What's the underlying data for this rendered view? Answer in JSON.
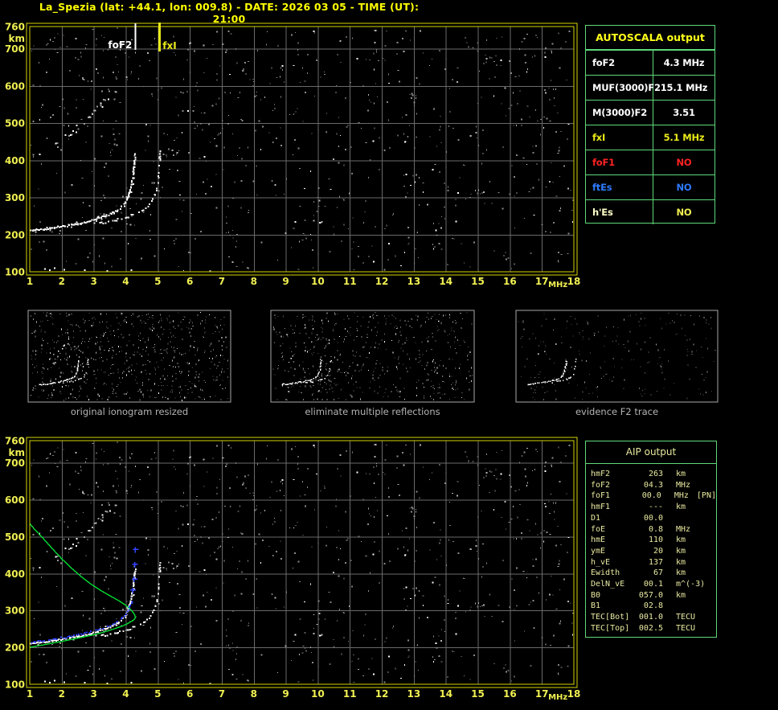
{
  "title": "La_Spezia (lat: +44.1, lon: 009.8) - DATE: 2026 03 05 - TIME (UT): 21:00",
  "colors": {
    "title": "#ffff00",
    "frame_yellow": "#d4d400",
    "grid_gray": "#6a6a6a",
    "tick_label": "#f0f052",
    "table_border": "#5ed97a",
    "trace_white": "#ffffff",
    "profile_green": "#00dd33",
    "restored_blue": "#3344ff",
    "caption_gray": "#b3b3b3",
    "aip_text": "#e9e9a0"
  },
  "autoscala": {
    "title": "AUTOSCALA output",
    "rows": [
      {
        "label": "foF2",
        "value": "4.3 MHz",
        "color": "#ffffff",
        "value_color": "#ffffff"
      },
      {
        "label": "MUF(3000)F2",
        "value": "15.1 MHz",
        "color": "#ffffff",
        "value_color": "#ffffff"
      },
      {
        "label": "M(3000)F2",
        "value": "3.51",
        "color": "#ffffff",
        "value_color": "#ffffff"
      },
      {
        "label": "fxI",
        "value": "5.1 MHz",
        "color": "#e8e81a",
        "value_color": "#e8e81a"
      },
      {
        "label": "foF1",
        "value": "NO",
        "color": "#ff2222",
        "value_color": "#ff2222"
      },
      {
        "label": "ftEs",
        "value": "NO",
        "color": "#2e7bff",
        "value_color": "#2e7bff"
      },
      {
        "label": "h'Es",
        "value": "NO",
        "color": "#ffffca",
        "value_color": "#f0f052"
      }
    ]
  },
  "aip": {
    "title": "AIP output",
    "rows": [
      {
        "label": "hmF2",
        "value": "263",
        "unit": "km"
      },
      {
        "label": "foF2",
        "value": "04.3",
        "unit": "MHz"
      },
      {
        "label": "foF1",
        "value": "00.0",
        "unit": "MHz",
        "extra": "[PN]"
      },
      {
        "label": "hmF1",
        "value": "---",
        "unit": "km"
      },
      {
        "label": "D1",
        "value": "00.0",
        "unit": ""
      },
      {
        "label": "foE",
        "value": "0.8",
        "unit": "MHz"
      },
      {
        "label": "hmE",
        "value": "110",
        "unit": "km"
      },
      {
        "label": "ymE",
        "value": "20",
        "unit": "km"
      },
      {
        "label": "h_vE",
        "value": "137",
        "unit": "km"
      },
      {
        "label": "Ewidth",
        "value": "67",
        "unit": "km"
      },
      {
        "label": "DelN_vE",
        "value": "00.1",
        "unit": "m^(-3)"
      },
      {
        "label": "B0",
        "value": "057.0",
        "unit": "km"
      },
      {
        "label": "B1",
        "value": "02.8",
        "unit": ""
      },
      {
        "label": "TEC[Bot]",
        "value": "001.0",
        "unit": "TECU"
      },
      {
        "label": "TEC[Top]",
        "value": "002.5",
        "unit": "TECU"
      }
    ]
  },
  "thumbnails": {
    "panels": [
      {
        "caption": "original ionogram resized",
        "noise": 680,
        "trace_p": 0.95,
        "dim": false
      },
      {
        "caption": "eliminate multiple reflections",
        "noise": 540,
        "trace_p": 0.9,
        "dim": false
      },
      {
        "caption": "evidence F2 trace",
        "noise": 230,
        "trace_p": 0.92,
        "dim": true
      }
    ]
  },
  "ionogram": {
    "x_unit": "MHz",
    "y_unit": "km",
    "x_range": [
      1,
      18
    ],
    "y_range": [
      100,
      760
    ],
    "x_ticks": [
      1,
      2,
      3,
      4,
      5,
      6,
      7,
      8,
      9,
      10,
      11,
      12,
      13,
      14,
      15,
      16,
      17,
      18
    ],
    "y_ticks": [
      760,
      700,
      600,
      500,
      400,
      300,
      200,
      100
    ],
    "markers": [
      {
        "id": "foF2",
        "f": 4.3,
        "label": "foF2",
        "color": "#ffffff",
        "side": "left"
      },
      {
        "id": "fxI",
        "f": 5.05,
        "label": "fxI",
        "color": "#e8e81a",
        "side": "right"
      }
    ],
    "o_trace": [
      [
        1.0,
        213
      ],
      [
        1.4,
        216
      ],
      [
        1.8,
        221
      ],
      [
        2.2,
        227
      ],
      [
        2.6,
        234
      ],
      [
        3.0,
        243
      ],
      [
        3.3,
        251
      ],
      [
        3.6,
        261
      ],
      [
        3.8,
        272
      ],
      [
        3.95,
        286
      ],
      [
        4.05,
        302
      ],
      [
        4.13,
        325
      ],
      [
        4.19,
        352
      ],
      [
        4.24,
        388
      ],
      [
        4.28,
        420
      ]
    ],
    "x_trace": [
      [
        2.9,
        230
      ],
      [
        3.3,
        235
      ],
      [
        3.7,
        242
      ],
      [
        4.1,
        251
      ],
      [
        4.4,
        261
      ],
      [
        4.6,
        272
      ],
      [
        4.75,
        286
      ],
      [
        4.87,
        304
      ],
      [
        4.95,
        330
      ],
      [
        5.0,
        362
      ],
      [
        5.03,
        398
      ],
      [
        5.06,
        432
      ]
    ],
    "spread": [
      [
        1.7,
        436
      ],
      [
        2.1,
        462
      ],
      [
        2.5,
        492
      ],
      [
        2.9,
        522
      ],
      [
        3.2,
        550
      ],
      [
        3.55,
        580
      ]
    ],
    "low_echoes": [
      [
        1.45,
        110
      ],
      [
        1.6,
        107
      ],
      [
        1.75,
        112
      ],
      [
        2.05,
        108
      ],
      [
        2.7,
        106
      ],
      [
        3.4,
        104
      ],
      [
        4.15,
        106
      ]
    ],
    "profile": [
      [
        1.0,
        200
      ],
      [
        1.5,
        208
      ],
      [
        2.0,
        216
      ],
      [
        2.5,
        225
      ],
      [
        3.0,
        234
      ],
      [
        3.3,
        241
      ],
      [
        3.6,
        249
      ],
      [
        3.9,
        258
      ],
      [
        4.05,
        264
      ],
      [
        4.15,
        269
      ],
      [
        4.25,
        274
      ],
      [
        4.3,
        280
      ],
      [
        4.28,
        288
      ],
      [
        4.2,
        298
      ],
      [
        4.1,
        307
      ],
      [
        3.95,
        317
      ],
      [
        3.75,
        328
      ],
      [
        3.5,
        340
      ],
      [
        3.2,
        355
      ],
      [
        2.9,
        372
      ],
      [
        2.6,
        392
      ],
      [
        2.3,
        415
      ],
      [
        2.0,
        440
      ],
      [
        1.7,
        468
      ],
      [
        1.4,
        497
      ],
      [
        1.15,
        520
      ],
      [
        1.0,
        535
      ]
    ],
    "blue_trace": [
      [
        1.0,
        215
      ],
      [
        1.4,
        220
      ],
      [
        1.8,
        225
      ],
      [
        2.2,
        231
      ],
      [
        2.6,
        238
      ],
      [
        3.0,
        247
      ],
      [
        3.3,
        255
      ],
      [
        3.6,
        265
      ],
      [
        3.8,
        276
      ],
      [
        3.95,
        290
      ],
      [
        4.08,
        308
      ],
      [
        4.18,
        330
      ]
    ],
    "blue_crosses": [
      [
        4.22,
        355
      ],
      [
        4.26,
        385
      ],
      [
        4.28,
        425
      ],
      [
        4.3,
        465
      ]
    ],
    "noise": {
      "seed": 1337,
      "count": 760,
      "clusters": 20
    }
  }
}
